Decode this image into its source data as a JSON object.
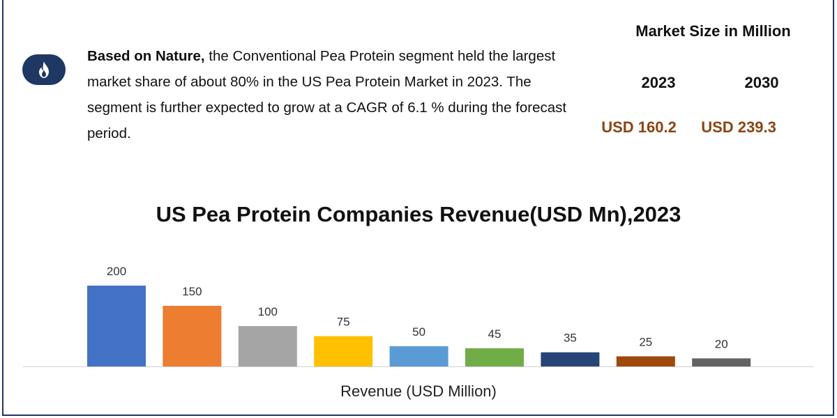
{
  "summary": {
    "bold_lead": "Based on Nature,",
    "text": " the Conventional Pea Protein segment held the largest market share of about 80% in the US Pea Protein Market in 2023. The segment is further expected to grow at a CAGR of 6.1 % during the forecast period.",
    "icon": "fire-icon"
  },
  "market_size": {
    "title": "Market Size in Million",
    "years": [
      "2023",
      "2030"
    ],
    "values": [
      "USD 160.2",
      "USD 239.3"
    ]
  },
  "colors": {
    "frame": "#1f3763",
    "market_value": "#8b4513"
  },
  "chart_data": {
    "type": "bar",
    "title": "US Pea Protein Companies Revenue(USD Mn),2023",
    "xlabel": "Revenue (USD Million)",
    "ylabel": "",
    "ylim": [
      0,
      200
    ],
    "values": [
      200,
      150,
      100,
      75,
      50,
      45,
      35,
      25,
      20
    ],
    "data_labels": [
      "200",
      "150",
      "100",
      "75",
      "50",
      "45",
      "35",
      "25",
      "20"
    ],
    "colors": [
      "#4472c4",
      "#ed7d31",
      "#a5a5a5",
      "#ffc000",
      "#5b9bd5",
      "#70ad47",
      "#264478",
      "#9e480e",
      "#636363"
    ],
    "grid": false,
    "legend": "none"
  }
}
